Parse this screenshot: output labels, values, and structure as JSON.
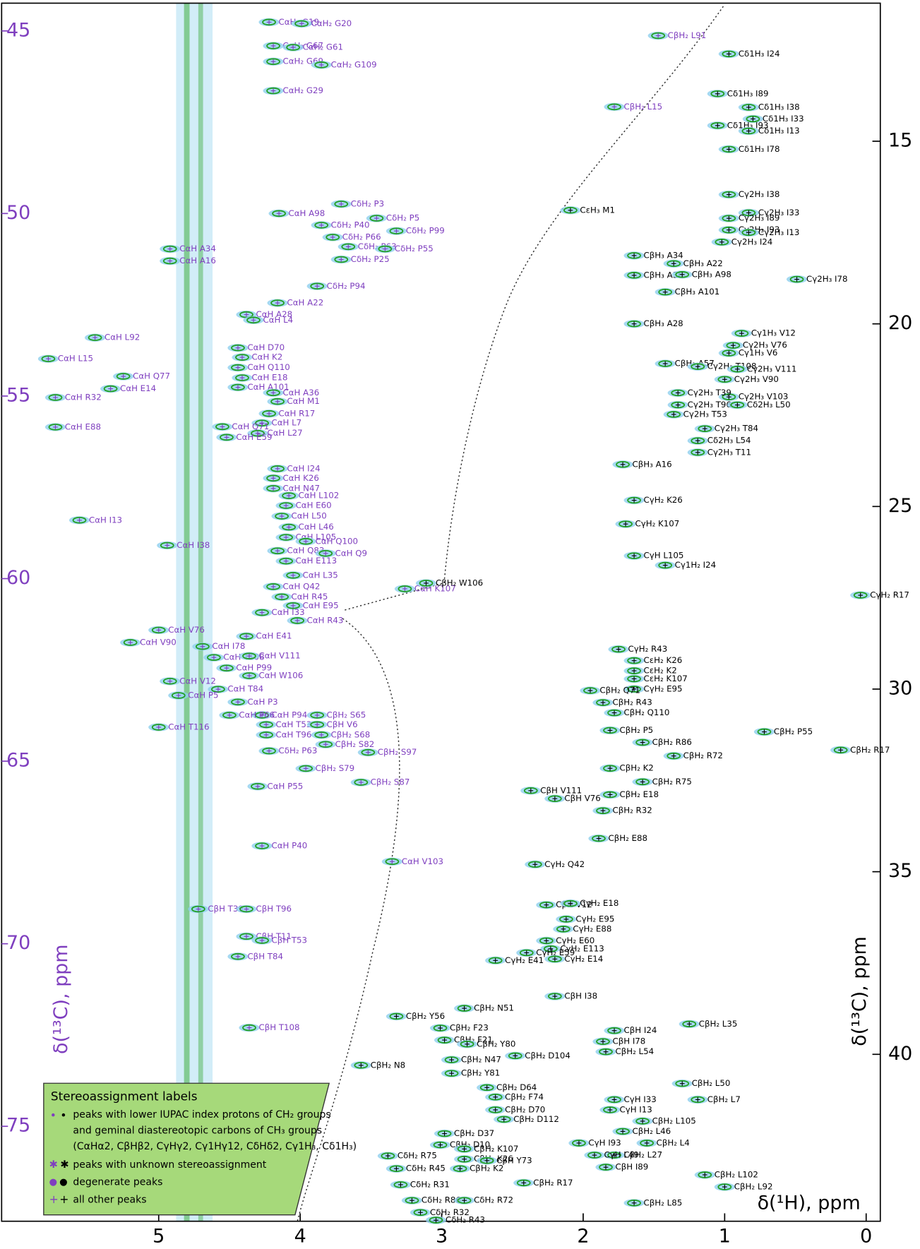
{
  "chart_data": {
    "type": "scatter",
    "xlabel": "δ(¹H), ppm",
    "ylabel": "δ(¹³C), ppm",
    "y2label": "δ(¹³C), ppm",
    "xlim": [
      6.11,
      -0.1
    ],
    "xticks": [
      5,
      4,
      3,
      2,
      1,
      0
    ],
    "ylim": [
      77.6,
      44.24
    ],
    "yticks": [
      45,
      50,
      55,
      60,
      65,
      70,
      75
    ],
    "y2lim": [
      44.57,
      11.22
    ],
    "y2ticks": [
      15,
      20,
      25,
      30,
      35,
      40
    ],
    "ycolor": "#7f3fbf",
    "y2color": "#000000",
    "peak_colors": [
      "#8fd0ee",
      "#22a022"
    ],
    "series": [
      {
        "color": "#7f3fbf",
        "axis": "y",
        "labels": [
          "CαH₂ G19",
          "CαH₂ G20",
          "CαH₂ G67",
          "CαH₂ G61",
          "CαH₂ G69",
          "CαH₂ G109",
          "CαH₂ G29",
          "CβH₂ L91",
          "CβH₂ L15",
          "CαH A98",
          "CδH₂ P3",
          "CδH₂ P5",
          "CδH₂ P40",
          "CδH₂ P99",
          "CδH₂ P66",
          "CδH₂ P63",
          "CδH₂ P55",
          "CδH₂ P25",
          "CαH A34",
          "CαH A16",
          "CδH₂ P94",
          "CαH A22",
          "CαH A28",
          "CαH L4",
          "CαH L92",
          "CαH L15",
          "CαH Q77",
          "CαH E14",
          "CαH R32",
          "CαH E88",
          "CαH D70",
          "CαH K2",
          "CαH Q110",
          "CαH E18",
          "CαH A101",
          "CαH A36",
          "CαH M1",
          "CαH R17",
          "CαH L7",
          "CαH L27",
          "CαH Q71",
          "CαH E59",
          "CαH I24",
          "CαH K26",
          "CαH N47",
          "CαH L102",
          "CαH E60",
          "CαH L50",
          "CαH L46",
          "CαH L105",
          "CαH Q83",
          "CαH E113",
          "CαH Q100",
          "CαH Q9",
          "CαH L35",
          "CαH Q42",
          "CαH R45",
          "CαH E95",
          "CαH K107",
          "CαH I13",
          "CαH I38",
          "CαH I33",
          "CαH R43",
          "CαH E41",
          "CαH I78",
          "CαH T108",
          "CαH V111",
          "CαH V76",
          "CαH V90",
          "CαH P99",
          "CαH V12",
          "CαH W106",
          "CαH T84",
          "CαH P5",
          "CαH P3",
          "CαH T116",
          "CαH P94",
          "CαH T53",
          "CαH T96",
          "CαH P66",
          "CδH₂ P63",
          "CβH₂ S65",
          "CβH V6",
          "CβH₂ S68",
          "CβH₂ S82",
          "CβH₂ S97",
          "CβH₂ S79",
          "CβH₂ S87",
          "CαH P55",
          "CαH P40",
          "CαH V103",
          "CβH T39",
          "CβH T96",
          "CβH T11",
          "CβH T53",
          "CβH T84",
          "CβH T108"
        ],
        "x": [
          4.22,
          3.99,
          4.19,
          4.05,
          4.19,
          3.85,
          4.19,
          1.47,
          1.78,
          4.15,
          3.71,
          3.46,
          3.85,
          3.32,
          3.77,
          3.66,
          3.4,
          3.71,
          4.92,
          4.92,
          3.88,
          4.16,
          4.38,
          4.33,
          5.45,
          5.78,
          5.25,
          5.34,
          5.73,
          5.73,
          4.44,
          4.41,
          4.44,
          4.41,
          4.44,
          4.19,
          4.16,
          4.22,
          4.27,
          4.3,
          4.55,
          4.52,
          4.16,
          4.19,
          4.19,
          4.08,
          4.1,
          4.13,
          4.08,
          4.1,
          4.16,
          4.1,
          3.96,
          3.82,
          4.05,
          4.19,
          4.13,
          4.05,
          3.26,
          5.56,
          4.94,
          4.27,
          4.02,
          4.38,
          4.69,
          4.61,
          4.36,
          5.0,
          5.2,
          4.52,
          4.92,
          4.36,
          4.58,
          4.86,
          4.44,
          5.0,
          4.27,
          4.24,
          4.24,
          4.5,
          4.22,
          3.88,
          3.88,
          3.85,
          3.82,
          3.52,
          3.96,
          3.57,
          4.3,
          4.27,
          3.35,
          4.72,
          4.38,
          4.38,
          4.27,
          4.44,
          4.36
        ],
        "values": [
          44.76,
          44.8,
          45.41,
          45.45,
          45.84,
          45.93,
          46.64,
          45.13,
          47.08,
          50.0,
          49.74,
          50.13,
          50.32,
          50.48,
          50.65,
          50.91,
          50.97,
          51.26,
          50.97,
          51.3,
          51.99,
          52.45,
          52.77,
          52.92,
          53.4,
          53.98,
          54.46,
          54.8,
          55.04,
          55.85,
          53.68,
          53.94,
          54.22,
          54.5,
          54.76,
          54.91,
          55.15,
          55.48,
          55.74,
          56.02,
          55.84,
          56.13,
          56.99,
          57.25,
          57.53,
          57.73,
          58.0,
          58.29,
          58.59,
          58.87,
          59.24,
          59.52,
          58.98,
          59.31,
          59.91,
          60.22,
          60.5,
          60.74,
          60.28,
          58.4,
          59.09,
          60.93,
          61.15,
          61.58,
          61.86,
          62.16,
          62.12,
          61.41,
          61.75,
          62.45,
          62.81,
          62.66,
          63.03,
          63.2,
          63.38,
          64.07,
          63.74,
          64.0,
          64.28,
          63.74,
          64.72,
          63.74,
          64.0,
          64.28,
          64.54,
          64.76,
          65.2,
          65.58,
          65.69,
          67.32,
          67.75,
          69.05,
          69.05,
          69.8,
          69.91,
          70.35,
          72.3
        ]
      },
      {
        "color": "#000000",
        "axis": "y2",
        "labels": [
          "CεH₃ M1",
          "Cδ1H₃ I24",
          "Cδ1H₃ I89",
          "Cδ1H₃ I38",
          "Cδ1H₃ I33",
          "Cδ1H₃ I93",
          "Cδ1H₃ I13",
          "Cδ1H₃ I78",
          "Cγ2H₃ I38",
          "Cγ2H₃ I33",
          "Cγ2H₃ I89",
          "Cγ2H₃ I93",
          "Cγ2H₃ I13",
          "Cγ2H₃ I24",
          "Cγ2H₃ I78",
          "CβH₃ A34",
          "CβH₃ A22",
          "CβH₃ A36",
          "CβH₃ A98",
          "CβH₃ A101",
          "CβH₃ A28",
          "CβH₃ A57",
          "CβH₃ A16",
          "Cγ2H₃ T108",
          "Cγ1H₃ V12",
          "Cγ2H₃ V76",
          "Cγ1H₃ V6",
          "Cγ2H₃ V111",
          "Cγ2H₃ V90",
          "Cγ2H₃ V103",
          "Cγ2H₃ T39",
          "Cγ2H₃ T96",
          "Cγ2H₃ T53",
          "Cγ2H₃ T84",
          "Cγ2H₃ T11",
          "Cδ2H₃ L50",
          "Cδ2H₃ L54",
          "CβH₂ W106",
          "CγH₂ K26",
          "CγH₂ K107",
          "CγH L105",
          "Cγ1H₂ I24",
          "CγH₂ R17",
          "CγH₂ R43",
          "CεH₂ K26",
          "CεH₂ K2",
          "CεH₂ K107",
          "CγH₂ E95",
          "CβH₂ Q71",
          "CβH₂ R43",
          "CβH₂ Q110",
          "CβH₂ P5",
          "CβH₂ P55",
          "CβH₂ R86",
          "CβH₂ R72",
          "CβH₂ R17",
          "CβH₂ K2",
          "CβH₂ R75",
          "CβH₂ E18",
          "CβH V76",
          "CβH V111",
          "CβH₂ R32",
          "CβH₂ E88",
          "CγH₂ Q42",
          "CβH V12",
          "CγH₂ E18",
          "CγH₂ E95",
          "CγH₂ E88",
          "CγH₂ E60",
          "CγH₂ E113",
          "CγH₂ E59",
          "CγH₂ E14",
          "CγH₂ E41",
          "CβH I38",
          "CβH₂ N51",
          "CβH₂ Y56",
          "CβH₂ F23",
          "CβH₂ F21",
          "CβH₂ Y80",
          "CβH₂ L35",
          "CβH I24",
          "CβH I78",
          "CβH₂ L54",
          "CβH₂ N47",
          "CβH₂ D104",
          "CβH₂ N8",
          "CβH₂ Y81",
          "CβH₂ D64",
          "CβH₂ F74",
          "CβH₂ D70",
          "CβH₂ D112",
          "CβH₂ L50",
          "CβH₂ L7",
          "CγH I33",
          "CγH I13",
          "CβH₂ L105",
          "CβH₂ L46",
          "CβH₂ L4",
          "CβH₂ L27",
          "CγH I93",
          "CγH L49",
          "CβH I89",
          "CβH₂ L102",
          "CβH₂ L92",
          "CβH₂ L85",
          "CβH₂ D37",
          "CβH₂ D10",
          "CβH₂ K107",
          "CβH₂ K26",
          "CβH₂ K2",
          "CβH Y73",
          "CβH₂ R17",
          "CδH₂ R75",
          "CδH₂ R45",
          "CδH₂ R31",
          "CδH₂ R86",
          "CδH₂ R32",
          "CδH₂ R72",
          "CδH₂ R43"
        ],
        "x": [
          2.09,
          0.97,
          1.05,
          0.83,
          0.8,
          1.05,
          0.83,
          0.97,
          0.97,
          0.83,
          0.97,
          0.97,
          0.83,
          1.02,
          0.49,
          1.64,
          1.36,
          1.64,
          1.3,
          1.42,
          1.64,
          1.42,
          1.72,
          1.19,
          0.88,
          0.94,
          0.97,
          0.91,
          1.0,
          0.97,
          1.33,
          1.33,
          1.36,
          1.14,
          1.19,
          0.91,
          1.19,
          3.11,
          1.64,
          1.7,
          1.64,
          1.42,
          0.04,
          1.75,
          1.64,
          1.64,
          1.64,
          1.64,
          1.95,
          1.86,
          1.78,
          1.81,
          0.72,
          1.58,
          1.36,
          0.18,
          1.81,
          1.58,
          1.81,
          2.2,
          2.37,
          1.86,
          1.89,
          2.34,
          2.26,
          2.09,
          2.12,
          2.14,
          2.26,
          2.23,
          2.4,
          2.2,
          2.62,
          2.2,
          2.84,
          3.32,
          3.01,
          2.98,
          2.82,
          1.25,
          1.78,
          1.86,
          1.84,
          2.93,
          2.48,
          3.57,
          2.93,
          2.68,
          2.62,
          2.62,
          2.56,
          1.3,
          1.19,
          1.78,
          1.81,
          1.58,
          1.72,
          1.55,
          1.78,
          2.03,
          1.92,
          1.84,
          1.14,
          1.0,
          1.64,
          2.98,
          3.01,
          2.84,
          2.84,
          2.87,
          2.68,
          2.42,
          3.38,
          3.32,
          3.29,
          3.21,
          3.15,
          2.84,
          3.04
        ],
        "values": [
          16.89,
          12.61,
          13.7,
          14.07,
          14.39,
          14.57,
          14.72,
          15.22,
          16.46,
          16.96,
          17.11,
          17.43,
          17.5,
          17.76,
          18.78,
          18.13,
          18.35,
          18.67,
          18.65,
          19.13,
          20.0,
          21.09,
          23.85,
          21.17,
          20.26,
          20.59,
          20.8,
          21.24,
          21.52,
          22.0,
          21.89,
          22.22,
          22.48,
          22.87,
          23.52,
          22.22,
          23.2,
          27.1,
          24.83,
          25.48,
          26.35,
          26.61,
          27.43,
          28.91,
          29.22,
          29.5,
          29.72,
          30.0,
          30.04,
          30.37,
          30.65,
          31.13,
          31.17,
          31.46,
          31.83,
          31.67,
          32.17,
          32.54,
          32.89,
          33.0,
          32.78,
          33.33,
          34.09,
          34.8,
          35.91,
          35.87,
          36.3,
          36.57,
          36.89,
          37.11,
          37.22,
          37.39,
          37.43,
          38.41,
          38.74,
          38.96,
          39.28,
          39.61,
          39.72,
          39.17,
          39.35,
          39.65,
          39.93,
          40.15,
          40.04,
          40.3,
          40.52,
          40.91,
          41.17,
          41.52,
          41.78,
          40.8,
          41.24,
          41.24,
          41.52,
          41.83,
          42.11,
          42.43,
          42.76,
          42.43,
          42.76,
          43.09,
          43.3,
          43.63,
          44.07,
          42.17,
          42.48,
          42.59,
          42.87,
          43.13,
          42.91,
          43.52,
          42.78,
          43.13,
          43.57,
          44.0,
          44.33,
          44.0,
          44.54
        ]
      }
    ],
    "legend": {
      "title": "Stereoassignment labels",
      "entries": [
        {
          "lines": [
            "peaks with lower IUPAC index protons of CH₂ groups",
            "and geminal diastereotopic carbons of CH₃ groups",
            "(CαHα2, CβHβ2, CγHγ2, Cγ1Hγ12, CδHδ2, Cγ1H₃, Cδ1H₃)"
          ]
        },
        {
          "lines": [
            "peaks with unknown stereoassignment"
          ]
        },
        {
          "lines": [
            "degenerate peaks"
          ]
        },
        {
          "lines": [
            "all other peaks"
          ]
        }
      ]
    }
  }
}
